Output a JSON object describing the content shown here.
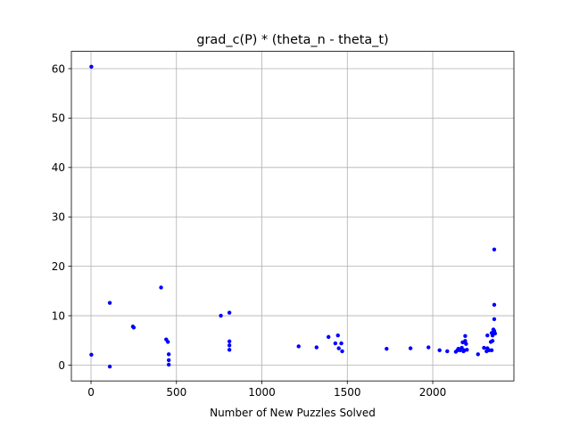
{
  "chart_data": {
    "type": "scatter",
    "title": "grad_c(P) * (theta_n - theta_t)",
    "xlabel": "Number of New Puzzles Solved",
    "ylabel": "",
    "xlim": [
      -115,
      2475
    ],
    "ylim": [
      -3.2,
      63.5
    ],
    "xticks": [
      0,
      500,
      1000,
      1500,
      2000
    ],
    "yticks": [
      0,
      10,
      20,
      30,
      40,
      50,
      60
    ],
    "grid": true,
    "marker_color": "#0000ff",
    "points": [
      [
        2,
        60.4
      ],
      [
        2,
        2.1
      ],
      [
        110,
        12.6
      ],
      [
        110,
        -0.3
      ],
      [
        245,
        7.8
      ],
      [
        250,
        7.6
      ],
      [
        410,
        15.7
      ],
      [
        440,
        5.2
      ],
      [
        450,
        4.7
      ],
      [
        455,
        2.2
      ],
      [
        455,
        1.0
      ],
      [
        455,
        0.1
      ],
      [
        760,
        10.0
      ],
      [
        810,
        10.6
      ],
      [
        810,
        4.8
      ],
      [
        810,
        4.0
      ],
      [
        810,
        3.1
      ],
      [
        1215,
        3.8
      ],
      [
        1320,
        3.6
      ],
      [
        1390,
        5.7
      ],
      [
        1430,
        4.4
      ],
      [
        1445,
        6.0
      ],
      [
        1450,
        3.4
      ],
      [
        1465,
        4.4
      ],
      [
        1470,
        2.8
      ],
      [
        1730,
        3.3
      ],
      [
        1870,
        3.4
      ],
      [
        1975,
        3.6
      ],
      [
        2040,
        3.0
      ],
      [
        2085,
        2.8
      ],
      [
        2135,
        2.7
      ],
      [
        2145,
        3.0
      ],
      [
        2150,
        3.3
      ],
      [
        2160,
        3.0
      ],
      [
        2170,
        3.5
      ],
      [
        2175,
        4.6
      ],
      [
        2180,
        2.8
      ],
      [
        2185,
        3.0
      ],
      [
        2190,
        5.9
      ],
      [
        2190,
        4.9
      ],
      [
        2195,
        4.3
      ],
      [
        2200,
        3.1
      ],
      [
        2265,
        2.2
      ],
      [
        2300,
        3.5
      ],
      [
        2315,
        2.8
      ],
      [
        2320,
        3.4
      ],
      [
        2320,
        6.0
      ],
      [
        2330,
        3.0
      ],
      [
        2340,
        4.7
      ],
      [
        2345,
        3.0
      ],
      [
        2345,
        6.5
      ],
      [
        2350,
        6.0
      ],
      [
        2350,
        4.9
      ],
      [
        2355,
        7.2
      ],
      [
        2360,
        23.4
      ],
      [
        2360,
        12.2
      ],
      [
        2360,
        9.3
      ],
      [
        2360,
        6.9
      ],
      [
        2365,
        6.4
      ]
    ]
  }
}
